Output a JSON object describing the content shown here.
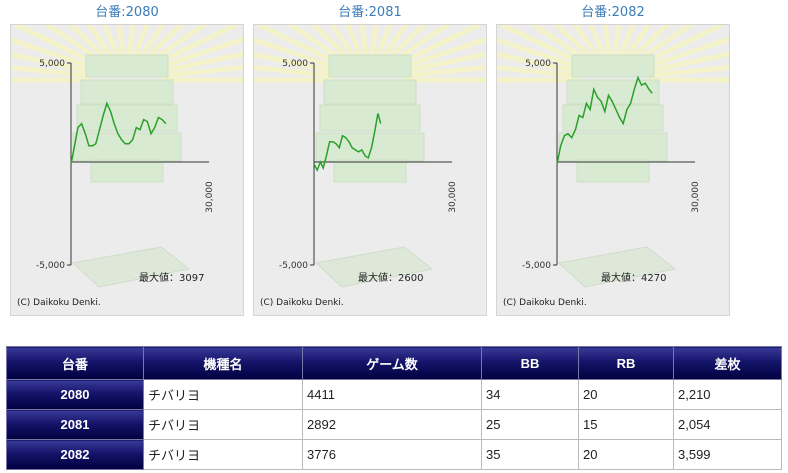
{
  "panels": [
    {
      "title": "台番:2080",
      "max_text": "最大値：3097",
      "copyright": "(C) Daikoku Denki.",
      "y_top_label": "5,000",
      "y_bottom_label": "-5,000",
      "x_right_label": "30,000"
    },
    {
      "title": "台番:2081",
      "max_text": "最大値：2600",
      "copyright": "(C) Daikoku Denki.",
      "y_top_label": "5,000",
      "y_bottom_label": "-5,000",
      "x_right_label": "30,000"
    },
    {
      "title": "台番:2082",
      "max_text": "最大値：4270",
      "copyright": "(C) Daikoku Denki.",
      "y_top_label": "5,000",
      "y_bottom_label": "-5,000",
      "x_right_label": "30,000"
    }
  ],
  "chart_data": [
    {
      "type": "line",
      "ylim": [
        -5000,
        5000
      ],
      "xlim": [
        0,
        30000
      ],
      "series": [
        {
          "color": "#2aa02a",
          "x": [
            0,
            700,
            1500,
            2300,
            3100,
            3900,
            4700,
            5400,
            6200,
            7000,
            7800,
            8600,
            9400,
            10200,
            11000,
            11800,
            12600,
            13400,
            14200,
            15000,
            15800,
            16600,
            17400,
            18200,
            19000,
            19800,
            20600
          ],
          "y": [
            0,
            800,
            1800,
            2000,
            1500,
            900,
            900,
            1000,
            1700,
            2400,
            3000,
            2600,
            2000,
            1500,
            1200,
            1000,
            1000,
            1200,
            1800,
            1700,
            2200,
            2100,
            1500,
            1800,
            2300,
            2200,
            2000
          ]
        }
      ]
    },
    {
      "type": "line",
      "ylim": [
        -5000,
        5000
      ],
      "xlim": [
        0,
        30000
      ],
      "series": [
        {
          "color": "#2aa02a",
          "x": [
            0,
            700,
            1400,
            2000,
            2700,
            3400,
            4100,
            4800,
            5500,
            6200,
            6900,
            7600,
            8300,
            9000,
            9700,
            10400,
            11100,
            11800,
            12500,
            13200,
            13900,
            14500
          ],
          "y": [
            0,
            -300,
            100,
            -200,
            400,
            1100,
            1100,
            1000,
            800,
            1400,
            1300,
            1100,
            800,
            700,
            600,
            700,
            400,
            300,
            800,
            1600,
            2500,
            2000
          ]
        }
      ]
    },
    {
      "type": "line",
      "ylim": [
        -5000,
        5000
      ],
      "xlim": [
        0,
        30000
      ],
      "series": [
        {
          "color": "#2aa02a",
          "x": [
            0,
            800,
            1600,
            2400,
            3200,
            4000,
            4800,
            5600,
            6400,
            7200,
            8000,
            8800,
            9600,
            10400,
            11200,
            12000,
            12800,
            13600,
            14400,
            15200,
            16000,
            16800,
            17600,
            18400,
            19200,
            20000,
            20700
          ],
          "y": [
            0,
            900,
            1400,
            1500,
            1300,
            1700,
            2400,
            2300,
            3000,
            2700,
            3700,
            3300,
            3100,
            2600,
            3400,
            3100,
            2700,
            2300,
            2000,
            2700,
            3000,
            3700,
            4270,
            3900,
            4000,
            3700,
            3500
          ]
        }
      ]
    }
  ],
  "table": {
    "headers": [
      "台番",
      "機種名",
      "ゲーム数",
      "BB",
      "RB",
      "差枚"
    ],
    "rows": [
      [
        "2080",
        "チバリヨ",
        "4411",
        "34",
        "20",
        "2,210"
      ],
      [
        "2081",
        "チバリヨ",
        "2892",
        "25",
        "15",
        "2,054"
      ],
      [
        "2082",
        "チバリヨ",
        "3776",
        "35",
        "20",
        "3,599"
      ]
    ]
  }
}
